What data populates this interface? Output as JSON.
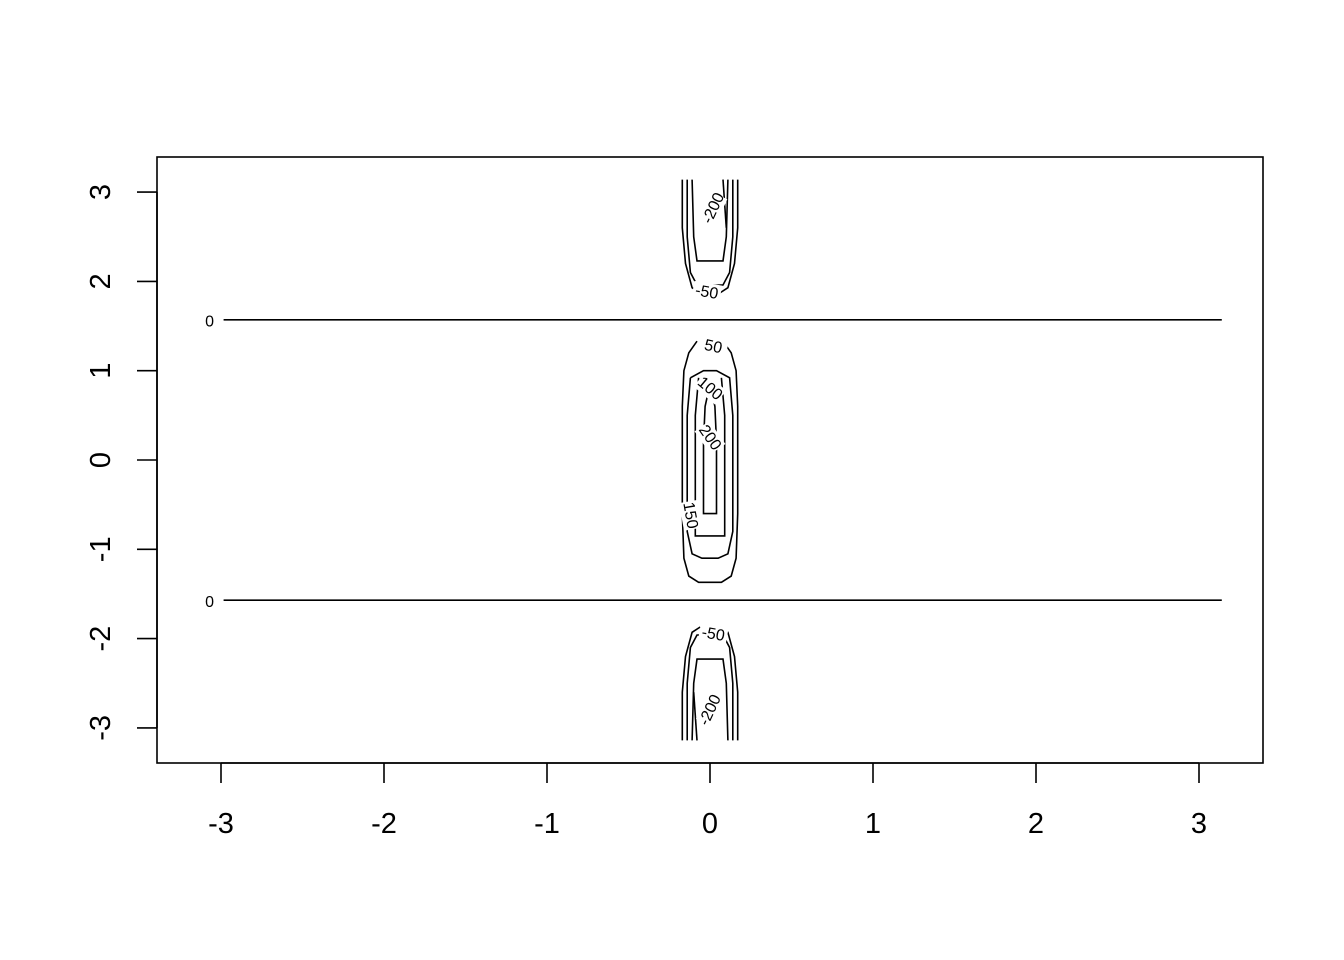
{
  "chart_data": {
    "type": "contour",
    "title": "",
    "xlabel": "",
    "ylabel": "",
    "xlim": [
      -3.3,
      3.4
    ],
    "ylim": [
      -3.4,
      3.4
    ],
    "x_ticks": [
      -3,
      -2,
      -1,
      0,
      1,
      2,
      3
    ],
    "x_tick_labels": [
      "-3",
      "-2",
      "-1",
      "0",
      "1",
      "2",
      "3"
    ],
    "y_ticks": [
      -3,
      -2,
      -1,
      0,
      1,
      2,
      3
    ],
    "y_tick_labels": [
      "-3",
      "-2",
      "-1",
      "0",
      "1",
      "2",
      "3"
    ],
    "grid": false,
    "contours": [
      {
        "level": 0,
        "label": "0",
        "lines": [
          [
            [
              -3.14,
              1.57
            ],
            [
              3.14,
              1.57
            ]
          ]
        ],
        "label_at": [
          -3.07,
          1.55
        ],
        "label_angle": 0
      },
      {
        "level": 0,
        "label": "0",
        "lines": [
          [
            [
              -3.14,
              -1.57
            ],
            [
              3.14,
              -1.57
            ]
          ]
        ],
        "label_at": [
          -3.07,
          -1.59
        ],
        "label_angle": 0
      },
      {
        "level": 50,
        "label": "50",
        "lines": [
          [
            [
              -0.08,
              1.33
            ],
            [
              -0.13,
              1.2
            ],
            [
              -0.16,
              1.0
            ],
            [
              -0.17,
              0.6
            ],
            [
              -0.17,
              -0.6
            ],
            [
              -0.16,
              -1.1
            ],
            [
              -0.13,
              -1.3
            ],
            [
              -0.07,
              -1.37
            ],
            [
              0.07,
              -1.37
            ],
            [
              0.13,
              -1.3
            ],
            [
              0.16,
              -1.1
            ],
            [
              0.17,
              -0.6
            ],
            [
              0.17,
              0.6
            ],
            [
              0.16,
              1.0
            ],
            [
              0.13,
              1.2
            ],
            [
              0.08,
              1.33
            ]
          ]
        ],
        "label_at": [
          0.02,
          1.27
        ],
        "label_angle": 12
      },
      {
        "level": 100,
        "label": "100",
        "lines": [
          [
            [
              -0.12,
              0.92
            ],
            [
              -0.14,
              0.5
            ],
            [
              -0.14,
              -0.8
            ],
            [
              -0.11,
              -1.05
            ],
            [
              -0.05,
              -1.1
            ],
            [
              0.05,
              -1.1
            ],
            [
              0.11,
              -1.05
            ],
            [
              0.14,
              -0.8
            ],
            [
              0.14,
              0.5
            ],
            [
              0.12,
              0.92
            ],
            [
              0.04,
              1.0
            ],
            [
              -0.04,
              1.0
            ],
            [
              -0.12,
              0.92
            ]
          ]
        ],
        "label_at": [
          0.0,
          0.8
        ],
        "label_angle": 40
      },
      {
        "level": 150,
        "label": "150",
        "lines": [
          [
            [
              -0.07,
              0.92
            ],
            [
              -0.09,
              0.5
            ],
            [
              -0.09,
              -0.85
            ],
            [
              0.09,
              -0.85
            ],
            [
              0.09,
              0.5
            ],
            [
              0.07,
              0.92
            ]
          ]
        ],
        "label_at": [
          -0.12,
          -0.62
        ],
        "label_angle": 80
      },
      {
        "level": 200,
        "label": "200",
        "lines": [
          [
            [
              0.0,
              0.85
            ],
            [
              -0.03,
              0.6
            ],
            [
              -0.04,
              0.2
            ],
            [
              -0.04,
              -0.6
            ],
            [
              0.04,
              -0.6
            ],
            [
              0.04,
              0.2
            ],
            [
              0.03,
              0.6
            ],
            [
              0.0,
              0.85
            ]
          ]
        ],
        "label_at": [
          0.0,
          0.25
        ],
        "label_angle": 55
      },
      {
        "level": -50,
        "label": "-50",
        "lines": [
          [
            [
              -0.17,
              3.14
            ],
            [
              -0.17,
              2.6
            ],
            [
              -0.15,
              2.2
            ],
            [
              -0.11,
              1.93
            ],
            [
              -0.06,
              1.87
            ]
          ],
          [
            [
              0.06,
              1.87
            ],
            [
              0.11,
              1.93
            ],
            [
              0.15,
              2.2
            ],
            [
              0.17,
              2.6
            ],
            [
              0.17,
              3.14
            ]
          ],
          [
            [
              -0.17,
              -3.14
            ],
            [
              -0.17,
              -2.6
            ],
            [
              -0.15,
              -2.2
            ],
            [
              -0.11,
              -1.93
            ],
            [
              -0.06,
              -1.87
            ]
          ],
          [
            [
              0.06,
              -1.87
            ],
            [
              0.11,
              -1.93
            ],
            [
              0.15,
              -2.2
            ],
            [
              0.17,
              -2.6
            ],
            [
              0.17,
              -3.14
            ]
          ]
        ],
        "label_at": [
          -0.02,
          1.88
        ],
        "label_angle": 10
      },
      {
        "level": -50,
        "label": "-50",
        "lines": [],
        "label_at": [
          0.02,
          -1.95
        ],
        "label_angle": 10
      },
      {
        "level": -100,
        "label": "",
        "lines": [
          [
            [
              -0.14,
              3.14
            ],
            [
              -0.14,
              2.5
            ],
            [
              -0.12,
              2.1
            ],
            [
              -0.08,
              1.96
            ],
            [
              0.08,
              1.96
            ],
            [
              0.12,
              2.1
            ],
            [
              0.14,
              2.5
            ],
            [
              0.14,
              3.14
            ]
          ],
          [
            [
              -0.14,
              -3.14
            ],
            [
              -0.14,
              -2.5
            ],
            [
              -0.12,
              -2.1
            ],
            [
              -0.08,
              -1.96
            ],
            [
              0.08,
              -1.96
            ],
            [
              0.12,
              -2.1
            ],
            [
              0.14,
              -2.5
            ],
            [
              0.14,
              -3.14
            ]
          ]
        ],
        "label_at": null,
        "label_angle": 0
      },
      {
        "level": -150,
        "label": "",
        "lines": [
          [
            [
              -0.11,
              3.14
            ],
            [
              -0.1,
              2.5
            ],
            [
              -0.08,
              2.23
            ],
            [
              0.08,
              2.23
            ],
            [
              0.1,
              2.5
            ],
            [
              0.11,
              3.14
            ]
          ],
          [
            [
              -0.11,
              -3.14
            ],
            [
              -0.1,
              -2.5
            ],
            [
              -0.08,
              -2.23
            ],
            [
              0.08,
              -2.23
            ],
            [
              0.1,
              -2.5
            ],
            [
              0.11,
              -3.14
            ]
          ]
        ],
        "label_at": null,
        "label_angle": 0
      },
      {
        "level": -200,
        "label": "-200",
        "lines": [
          [
            [
              0.08,
              3.14
            ],
            [
              0.1,
              2.6
            ]
          ],
          [
            [
              -0.08,
              -3.14
            ],
            [
              -0.1,
              -2.6
            ]
          ]
        ],
        "label_at": [
          0.02,
          2.82
        ],
        "label_angle": -65
      },
      {
        "level": -200,
        "label": "-200",
        "lines": [],
        "label_at": [
          0.0,
          -2.8
        ],
        "label_angle": -65
      }
    ]
  }
}
